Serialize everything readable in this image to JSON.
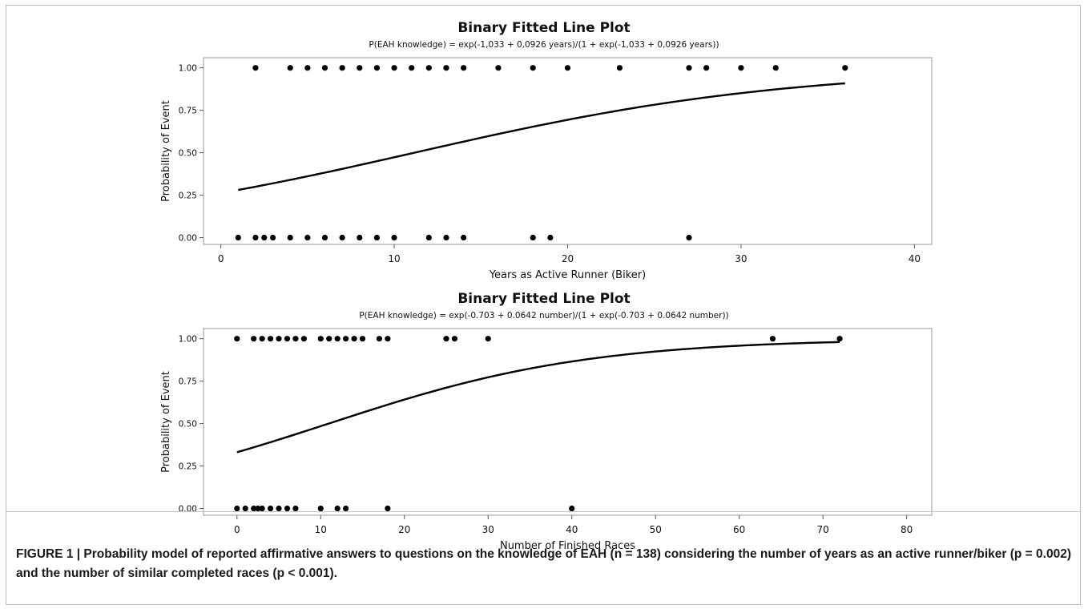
{
  "caption": "FIGURE 1 | Probability model of reported affirmative answers to questions on the knowledge of EAH (n = 138) considering the number of years as an active runner/biker (p = 0.002) and the number of similar completed races (p < 0.001).",
  "chart_data": [
    {
      "type": "scatter",
      "title": "Binary Fitted Line Plot",
      "subtitle": "P(EAH knowledge) = exp(-1,033 + 0,0926 years)/(1 + exp(-1,033 + 0,0926 years))",
      "xlabel": "Years as Active Runner (Biker)",
      "ylabel": "Probability of Event",
      "xlim": [
        -1,
        41
      ],
      "ylim": [
        -0.04,
        1.06
      ],
      "xticks": [
        0,
        10,
        20,
        30,
        40
      ],
      "xtick_labels": [
        "0",
        "10",
        "20",
        "30",
        "40"
      ],
      "yticks": [
        0,
        0.25,
        0.5,
        0.75,
        1
      ],
      "ytick_labels": [
        "0.00",
        "0.25",
        "0.50",
        "0.75",
        "1.00"
      ],
      "points_y1": [
        2,
        4,
        5,
        6,
        7,
        8,
        9,
        10,
        11,
        12,
        13,
        14,
        16,
        18,
        20,
        23,
        27,
        28,
        30,
        32,
        36
      ],
      "points_y0": [
        1,
        2,
        2.5,
        3,
        4,
        5,
        6,
        7,
        8,
        9,
        10,
        12,
        13,
        14,
        18,
        19,
        27
      ],
      "fit": {
        "intercept": -1.033,
        "slope": 0.0926,
        "x_range": [
          1,
          36
        ]
      },
      "grid": false,
      "color": "#000000"
    },
    {
      "type": "scatter",
      "title": "Binary Fitted Line Plot",
      "subtitle": "P(EAH knowledge) = exp(-0.703 + 0.0642 number)/(1 + exp(-0.703 + 0.0642 number))",
      "xlabel": "Number of Finished Races",
      "ylabel": "Probability of Event",
      "xlim": [
        -4,
        83
      ],
      "ylim": [
        -0.04,
        1.06
      ],
      "xticks": [
        0,
        10,
        20,
        30,
        40,
        50,
        60,
        70,
        80
      ],
      "xtick_labels": [
        "0",
        "10",
        "20",
        "30",
        "40",
        "50",
        "60",
        "70",
        "80"
      ],
      "yticks": [
        0,
        0.25,
        0.5,
        0.75,
        1
      ],
      "ytick_labels": [
        "0.00",
        "0.25",
        "0.50",
        "0.75",
        "1.00"
      ],
      "points_y1": [
        0,
        2,
        3,
        4,
        5,
        6,
        7,
        8,
        10,
        11,
        12,
        13,
        14,
        15,
        17,
        18,
        25,
        26,
        30,
        64,
        72
      ],
      "points_y0": [
        0,
        1,
        2,
        2.5,
        3,
        4,
        5,
        6,
        7,
        10,
        12,
        13,
        18,
        40
      ],
      "fit": {
        "intercept": -0.703,
        "slope": 0.0642,
        "x_range": [
          0,
          72
        ]
      },
      "grid": false,
      "color": "#000000"
    }
  ]
}
